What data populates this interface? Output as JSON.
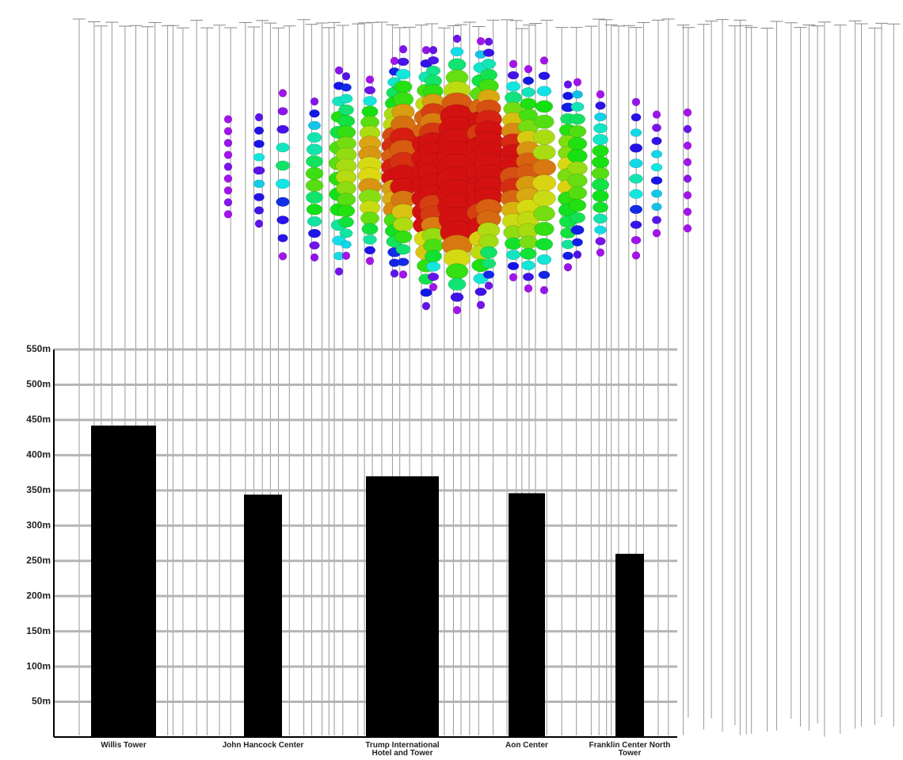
{
  "chart_data": {
    "type": "bar",
    "categories": [
      "Willis Tower",
      "John Hancock Center",
      "Trump International Hotel and Tower",
      "Aon Center",
      "Franklin Center North Tower"
    ],
    "values": [
      442,
      344,
      370,
      346,
      260
    ],
    "color": "#000000",
    "ylim": [
      0,
      550
    ],
    "yticks": [
      {
        "value": 50,
        "label": "50m"
      },
      {
        "value": 100,
        "label": "100m"
      },
      {
        "value": 150,
        "label": "150m"
      },
      {
        "value": 200,
        "label": "200m"
      },
      {
        "value": 250,
        "label": "250m"
      },
      {
        "value": 300,
        "label": "300m"
      },
      {
        "value": 350,
        "label": "350m"
      },
      {
        "value": 400,
        "label": "400m"
      },
      {
        "value": 450,
        "label": "450m"
      },
      {
        "value": 500,
        "label": "500m"
      },
      {
        "value": 550,
        "label": "550m"
      }
    ],
    "grid": true
  }
}
